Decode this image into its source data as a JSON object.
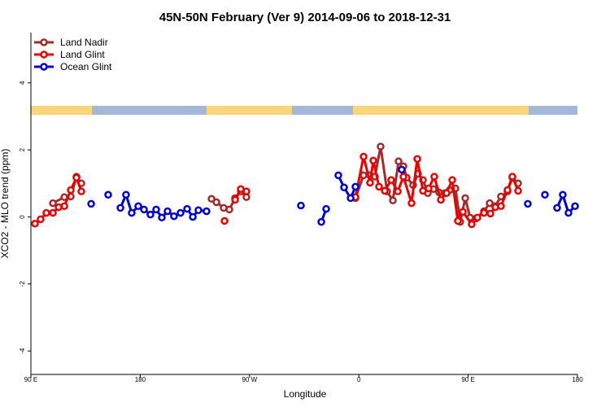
{
  "chart_data": {
    "type": "line",
    "title": "45N-50N February (Ver 9)   2014-09-06 to 2018-12-31",
    "x_label": "Longitude",
    "y_label": "XCO2 - MLO trend (ppm)",
    "xlim": [
      90,
      540
    ],
    "xticks": [
      {
        "value": 90,
        "label": "90 E"
      },
      180,
      {
        "value": 270,
        "label": "90 W"
      },
      {
        "value": 360,
        "label": "0"
      },
      {
        "value": 450,
        "label": "90 E"
      },
      {
        "value": 540,
        "label": "180"
      }
    ],
    "ylim": [
      -4.7,
      5.5
    ],
    "yticks": [
      -4,
      -2,
      0,
      2,
      4
    ],
    "legend": "top-left",
    "series": [
      {
        "name": "Land Nadir",
        "color": "#a52a2a",
        "x": [
          108.1,
          117.5,
          122.8,
          127.5,
          131.5,
          null,
          238.7,
          242.7,
          248.7,
          253.4,
          258.1,
          262.8,
          267.4,
          null,
          357.2,
          363.9,
          369.2,
          373.2,
          377.9,
          383.3,
          388.0,
          392.7,
          396.7,
          399.4,
          404.7,
          408.7,
          412.8,
          416.8,
          421.5,
          426.1,
          430.8,
          434.8,
          439.5,
          443.5,
          447.6,
          451.6,
          456.3,
          463.0,
          467.7,
          472.3,
          477.0,
          482.4,
          486.4,
          491.1
        ],
        "values": [
          0.41,
          0.59,
          0.61,
          1.2,
          1.0,
          null,
          0.54,
          0.44,
          0.27,
          0.22,
          0.56,
          0.76,
          0.59,
          null,
          0.56,
          1.24,
          1.24,
          1.2,
          2.1,
          0.76,
          0.49,
          1.66,
          1.51,
          1.17,
          0.95,
          1.29,
          1.1,
          0.71,
          0.83,
          0.73,
          0.71,
          0.8,
          0.85,
          -0.15,
          0.56,
          -0.02,
          -0.05,
          0.17,
          0.41,
          0.32,
          0.61,
          0.76,
          1.17,
          1.0
        ]
      },
      {
        "name": "Land Glint",
        "color": "#ee0000",
        "x": [
          93.3,
          98.0,
          102.7,
          108.1,
          112.8,
          117.5,
          122.8,
          127.5,
          131.5,
          null,
          249.4,
          null,
          258.1,
          262.8,
          267.4,
          null,
          357.2,
          363.9,
          369.2,
          371.9,
          376.6,
          381.3,
          386.6,
          392.0,
          396.7,
          403.4,
          408.1,
          412.8,
          417.4,
          422.1,
          427.5,
          432.2,
          436.9,
          441.5,
          445.6,
          452.9,
          457.6,
          463.0,
          468.3,
          472.3,
          477.0,
          482.4,
          486.4,
          491.1
        ],
        "values": [
          -0.2,
          -0.07,
          0.12,
          0.12,
          0.29,
          0.32,
          0.8,
          1.17,
          0.76,
          null,
          -0.12,
          null,
          0.51,
          0.83,
          0.76,
          null,
          0.59,
          1.8,
          1.02,
          1.68,
          0.9,
          0.78,
          1.1,
          0.76,
          1.2,
          0.41,
          1.73,
          0.78,
          0.85,
          1.2,
          0.51,
          0.71,
          1.1,
          -0.12,
          0.15,
          -0.22,
          -0.02,
          0.12,
          0.1,
          0.29,
          0.32,
          0.8,
          1.2,
          0.78
        ]
      },
      {
        "name": "Ocean Glint",
        "color": "#0000dd",
        "x": [
          139.6,
          null,
          153.6,
          null,
          163.7,
          168.3,
          173.0,
          178.4,
          183.1,
          188.4,
          193.1,
          197.8,
          202.5,
          207.8,
          213.2,
          218.6,
          223.3,
          227.9,
          234.6,
          null,
          312.3,
          null,
          329.1,
          333.1,
          null,
          343.1,
          347.8,
          353.2,
          357.2,
          null,
          395.3,
          null,
          499.1,
          null,
          513.2,
          null,
          523.2,
          527.9,
          532.6,
          538.0
        ],
        "values": [
          0.39,
          null,
          0.66,
          null,
          0.27,
          0.66,
          0.12,
          0.32,
          0.22,
          0.07,
          0.22,
          -0.02,
          0.17,
          0.02,
          0.12,
          0.24,
          0.0,
          0.2,
          0.17,
          null,
          0.34,
          null,
          -0.15,
          0.24,
          null,
          1.24,
          0.88,
          0.56,
          0.9,
          null,
          1.41,
          null,
          0.39,
          null,
          0.66,
          null,
          0.27,
          0.66,
          0.12,
          0.32
        ]
      }
    ]
  }
}
